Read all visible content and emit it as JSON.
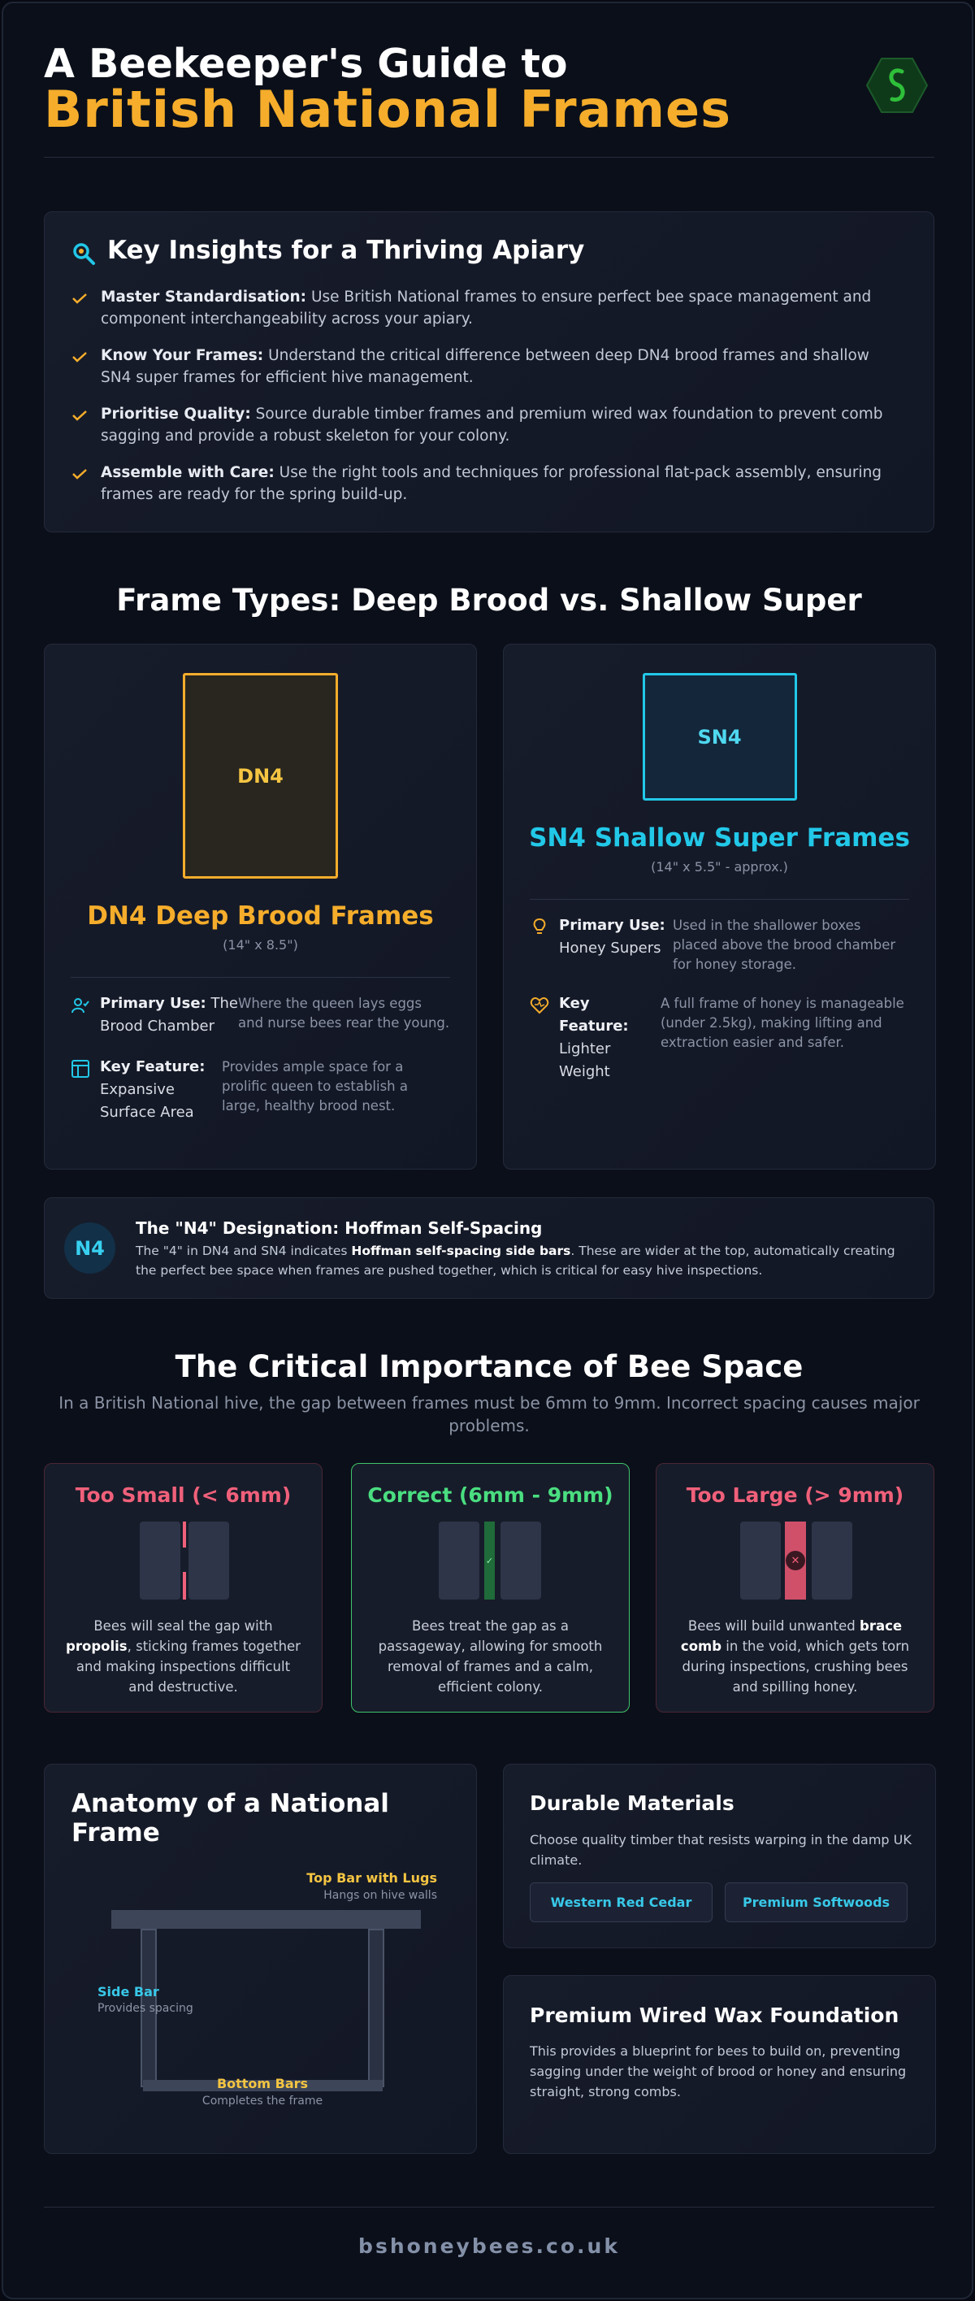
{
  "header": {
    "title_line1": "A Beekeeper's Guide to",
    "title_line2": "British National Frames"
  },
  "insights": {
    "title": "Key Insights for a Thriving Apiary",
    "items": [
      {
        "label": "Master Standardisation:",
        "text": "Use British National frames to ensure perfect bee space management and component interchangeability across your apiary."
      },
      {
        "label": "Know Your Frames:",
        "text": "Understand the critical difference between deep DN4 brood frames and shallow SN4 super frames for efficient hive management."
      },
      {
        "label": "Prioritise Quality:",
        "text": "Source durable timber frames and premium wired wax foundation to prevent comb sagging and provide a robust skeleton for your colony."
      },
      {
        "label": "Assemble with Care:",
        "text": "Use the right tools and techniques for professional flat-pack assembly, ensuring frames are ready for the spring build-up."
      }
    ]
  },
  "frame_types": {
    "title": "Frame Types: Deep Brood vs. Shallow Super",
    "cards": [
      {
        "badge": "DN4",
        "title": "DN4 Deep Brood Frames",
        "size": "(14\" x 8.5\")",
        "features": [
          {
            "label": "Primary Use:",
            "value": "The Brood Chamber",
            "desc": "Where the queen lays eggs and nurse bees rear the young."
          },
          {
            "label": "Key Feature:",
            "value": "Expansive Surface Area",
            "desc": "Provides ample space for a prolific queen to establish a large, healthy brood nest."
          }
        ]
      },
      {
        "badge": "SN4",
        "title": "SN4 Shallow Super Frames",
        "size": "(14\" x 5.5\" - approx.)",
        "features": [
          {
            "label": "Primary Use:",
            "value": "Honey Supers",
            "desc": "Used in the shallower boxes placed above the brood chamber for honey storage."
          },
          {
            "label": "Key Feature:",
            "value": "Lighter Weight",
            "desc": "A full frame of honey is manageable (under 2.5kg), making lifting and extraction easier and safer."
          }
        ]
      }
    ]
  },
  "n4": {
    "badge": "N4",
    "title": "The \"N4\" Designation: Hoffman Self-Spacing",
    "text_before": "The \"4\" in DN4 and SN4 indicates",
    "bold": "Hoffman self-spacing side bars",
    "text_after": ". These are wider at the top, automatically creating the perfect bee space when frames are pushed together, which is critical for easy hive inspections."
  },
  "bee_space": {
    "title": "The Critical Importance of Bee Space",
    "subtitle": "In a British National hive, the gap between frames must be 6mm to 9mm. Incorrect spacing causes major problems.",
    "cards": [
      {
        "title": "Too Small (< 6mm)",
        "text_before": "Bees will seal the gap with",
        "bold": "propolis",
        "text_after": ", sticking frames together and making inspections difficult and destructive."
      },
      {
        "title": "Correct (6mm - 9mm)",
        "text_before": "Bees treat the gap as a passageway, allowing for smooth removal of frames and a calm, efficient colony.",
        "bold": null,
        "text_after": null
      },
      {
        "title": "Too Large (> 9mm)",
        "text_before": "Bees will build unwanted",
        "bold": "brace comb",
        "text_after": "in the void, which gets torn during inspections, crushing bees and spilling honey."
      }
    ]
  },
  "anatomy": {
    "title": "Anatomy of a National Frame",
    "top_bar": {
      "label": "Top Bar with Lugs",
      "note": "Hangs on hive walls"
    },
    "side_bar": {
      "label": "Side Bar",
      "note": "Provides spacing"
    },
    "bottom_bar": {
      "label": "Bottom Bars",
      "note": "Completes the frame"
    }
  },
  "materials": {
    "title": "Durable Materials",
    "text": "Choose quality timber that resists warping in the damp UK climate.",
    "options": [
      "Western Red Cedar",
      "Premium Softwoods"
    ]
  },
  "foundation": {
    "title": "Premium Wired Wax Foundation",
    "text": "This provides a blueprint for bees to build on, preventing sagging under the weight of brood or honey and ensuring straight, strong combs."
  },
  "footer": {
    "site": "bshoneybees.co.uk"
  }
}
